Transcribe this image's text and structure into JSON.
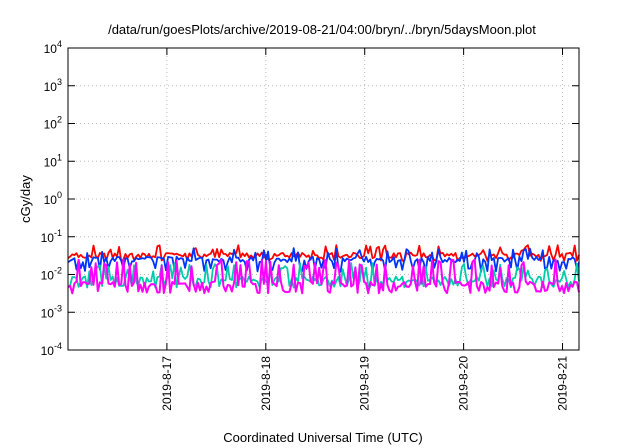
{
  "chart_data": {
    "type": "line",
    "title": "/data/run/goesPlots/archive/2019-08-21/04:00/bryn/../bryn/5daysMoon.plot",
    "xlabel": "Coordinated Universal Time (UTC)",
    "ylabel": "cGy/day",
    "yscale": "log",
    "ylim": [
      0.0001,
      10000
    ],
    "y_ticks": [
      {
        "base": "10",
        "exp": "-4",
        "value": 0.0001
      },
      {
        "base": "10",
        "exp": "-3",
        "value": 0.001
      },
      {
        "base": "10",
        "exp": "-2",
        "value": 0.01
      },
      {
        "base": "10",
        "exp": "-1",
        "value": 0.1
      },
      {
        "base": "10",
        "exp": "0",
        "value": 1
      },
      {
        "base": "10",
        "exp": "1",
        "value": 10
      },
      {
        "base": "10",
        "exp": "2",
        "value": 100
      },
      {
        "base": "10",
        "exp": "3",
        "value": 1000
      },
      {
        "base": "10",
        "exp": "4",
        "value": 10000
      }
    ],
    "xlim": [
      "2019-08-16T00:00",
      "2019-08-21T04:00"
    ],
    "x_ticks": [
      {
        "label": "2019-8-17",
        "value": "2019-08-17T00:00"
      },
      {
        "label": "2019-8-18",
        "value": "2019-08-18T00:00"
      },
      {
        "label": "2019-8-19",
        "value": "2019-08-19T00:00"
      },
      {
        "label": "2019-8-20",
        "value": "2019-08-20T00:00"
      },
      {
        "label": "2019-8-21",
        "value": "2019-08-21T00:00"
      }
    ],
    "grid": true,
    "series": [
      {
        "color": "#ff0000",
        "typical": 0.032,
        "low": 0.024,
        "high": 0.06
      },
      {
        "color": "#0033ff",
        "typical": 0.025,
        "low": 0.013,
        "high": 0.05
      },
      {
        "color": "#00ccaa",
        "typical": 0.0075,
        "low": 0.005,
        "high": 0.02
      },
      {
        "color": "#ff00ff",
        "typical": 0.0055,
        "low": 0.0035,
        "high": 0.025
      }
    ]
  }
}
